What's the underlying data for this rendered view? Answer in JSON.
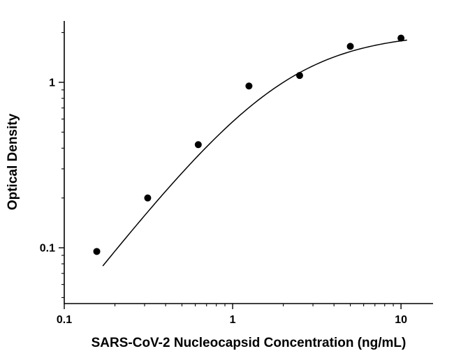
{
  "chart_data": {
    "type": "scatter",
    "title": "",
    "xlabel": "SARS-CoV-2 Nucleocapsid Concentration (ng/mL)",
    "ylabel": "Optical Density",
    "x_scale": "log",
    "y_scale": "log",
    "xlim": [
      0.1,
      15.5
    ],
    "ylim": [
      0.046,
      2.35
    ],
    "x_major_ticks": [
      0.1,
      1,
      10
    ],
    "x_major_tick_labels": [
      "0.1",
      "1",
      "10"
    ],
    "y_major_ticks": [
      0.1,
      1
    ],
    "y_major_tick_labels": [
      "0.1",
      "1"
    ],
    "grid": false,
    "legend": false,
    "points": {
      "x": [
        0.156,
        0.313,
        0.625,
        1.25,
        2.5,
        5,
        10
      ],
      "y": [
        0.095,
        0.2,
        0.42,
        0.95,
        1.1,
        1.65,
        1.85
      ]
    },
    "fit_curve": {
      "model": "4PL",
      "params": {
        "min": 0,
        "max": 2.0,
        "ec50": 2.0,
        "hill": 1.3
      },
      "x_range": [
        0.17,
        10.8
      ]
    },
    "marker_color": "#000000",
    "marker_radius": 5,
    "line_color": "#000000",
    "line_width": 1.5,
    "axis_color": "#000000",
    "background": "#ffffff"
  }
}
